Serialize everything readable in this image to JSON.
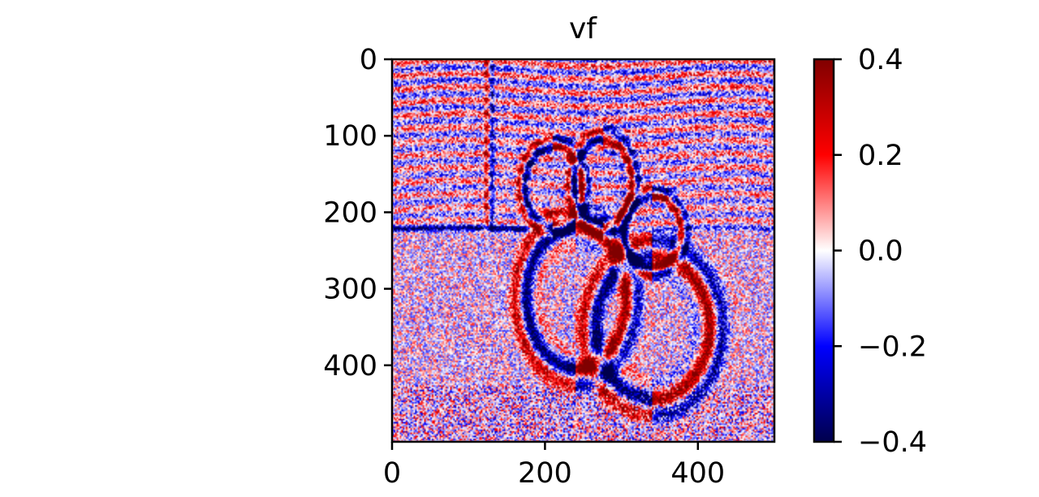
{
  "chart_data": {
    "type": "heatmap",
    "title": "vf",
    "xlabel": "",
    "ylabel": "",
    "x_range": [
      0,
      500
    ],
    "y_range": [
      0,
      500
    ],
    "y_inverted": true,
    "x_ticks": [
      0,
      200,
      400
    ],
    "y_ticks": [
      0,
      100,
      200,
      300,
      400
    ],
    "x_tick_labels": [
      "0",
      "200",
      "400"
    ],
    "y_tick_labels": [
      "0",
      "100",
      "200",
      "300",
      "400"
    ],
    "colormap": "seismic",
    "colormap_stops": [
      "#00004c",
      "#0000ff",
      "#ffffff",
      "#ff0000",
      "#800000"
    ],
    "colorbar": {
      "range": [
        -0.4,
        0.4
      ],
      "ticks": [
        0.4,
        0.2,
        0.0,
        -0.2,
        -0.4
      ],
      "tick_labels": [
        "0.4",
        "0.2",
        "0.0",
        "−0.2",
        "−0.4"
      ],
      "placement": "right"
    },
    "grid": false
  }
}
